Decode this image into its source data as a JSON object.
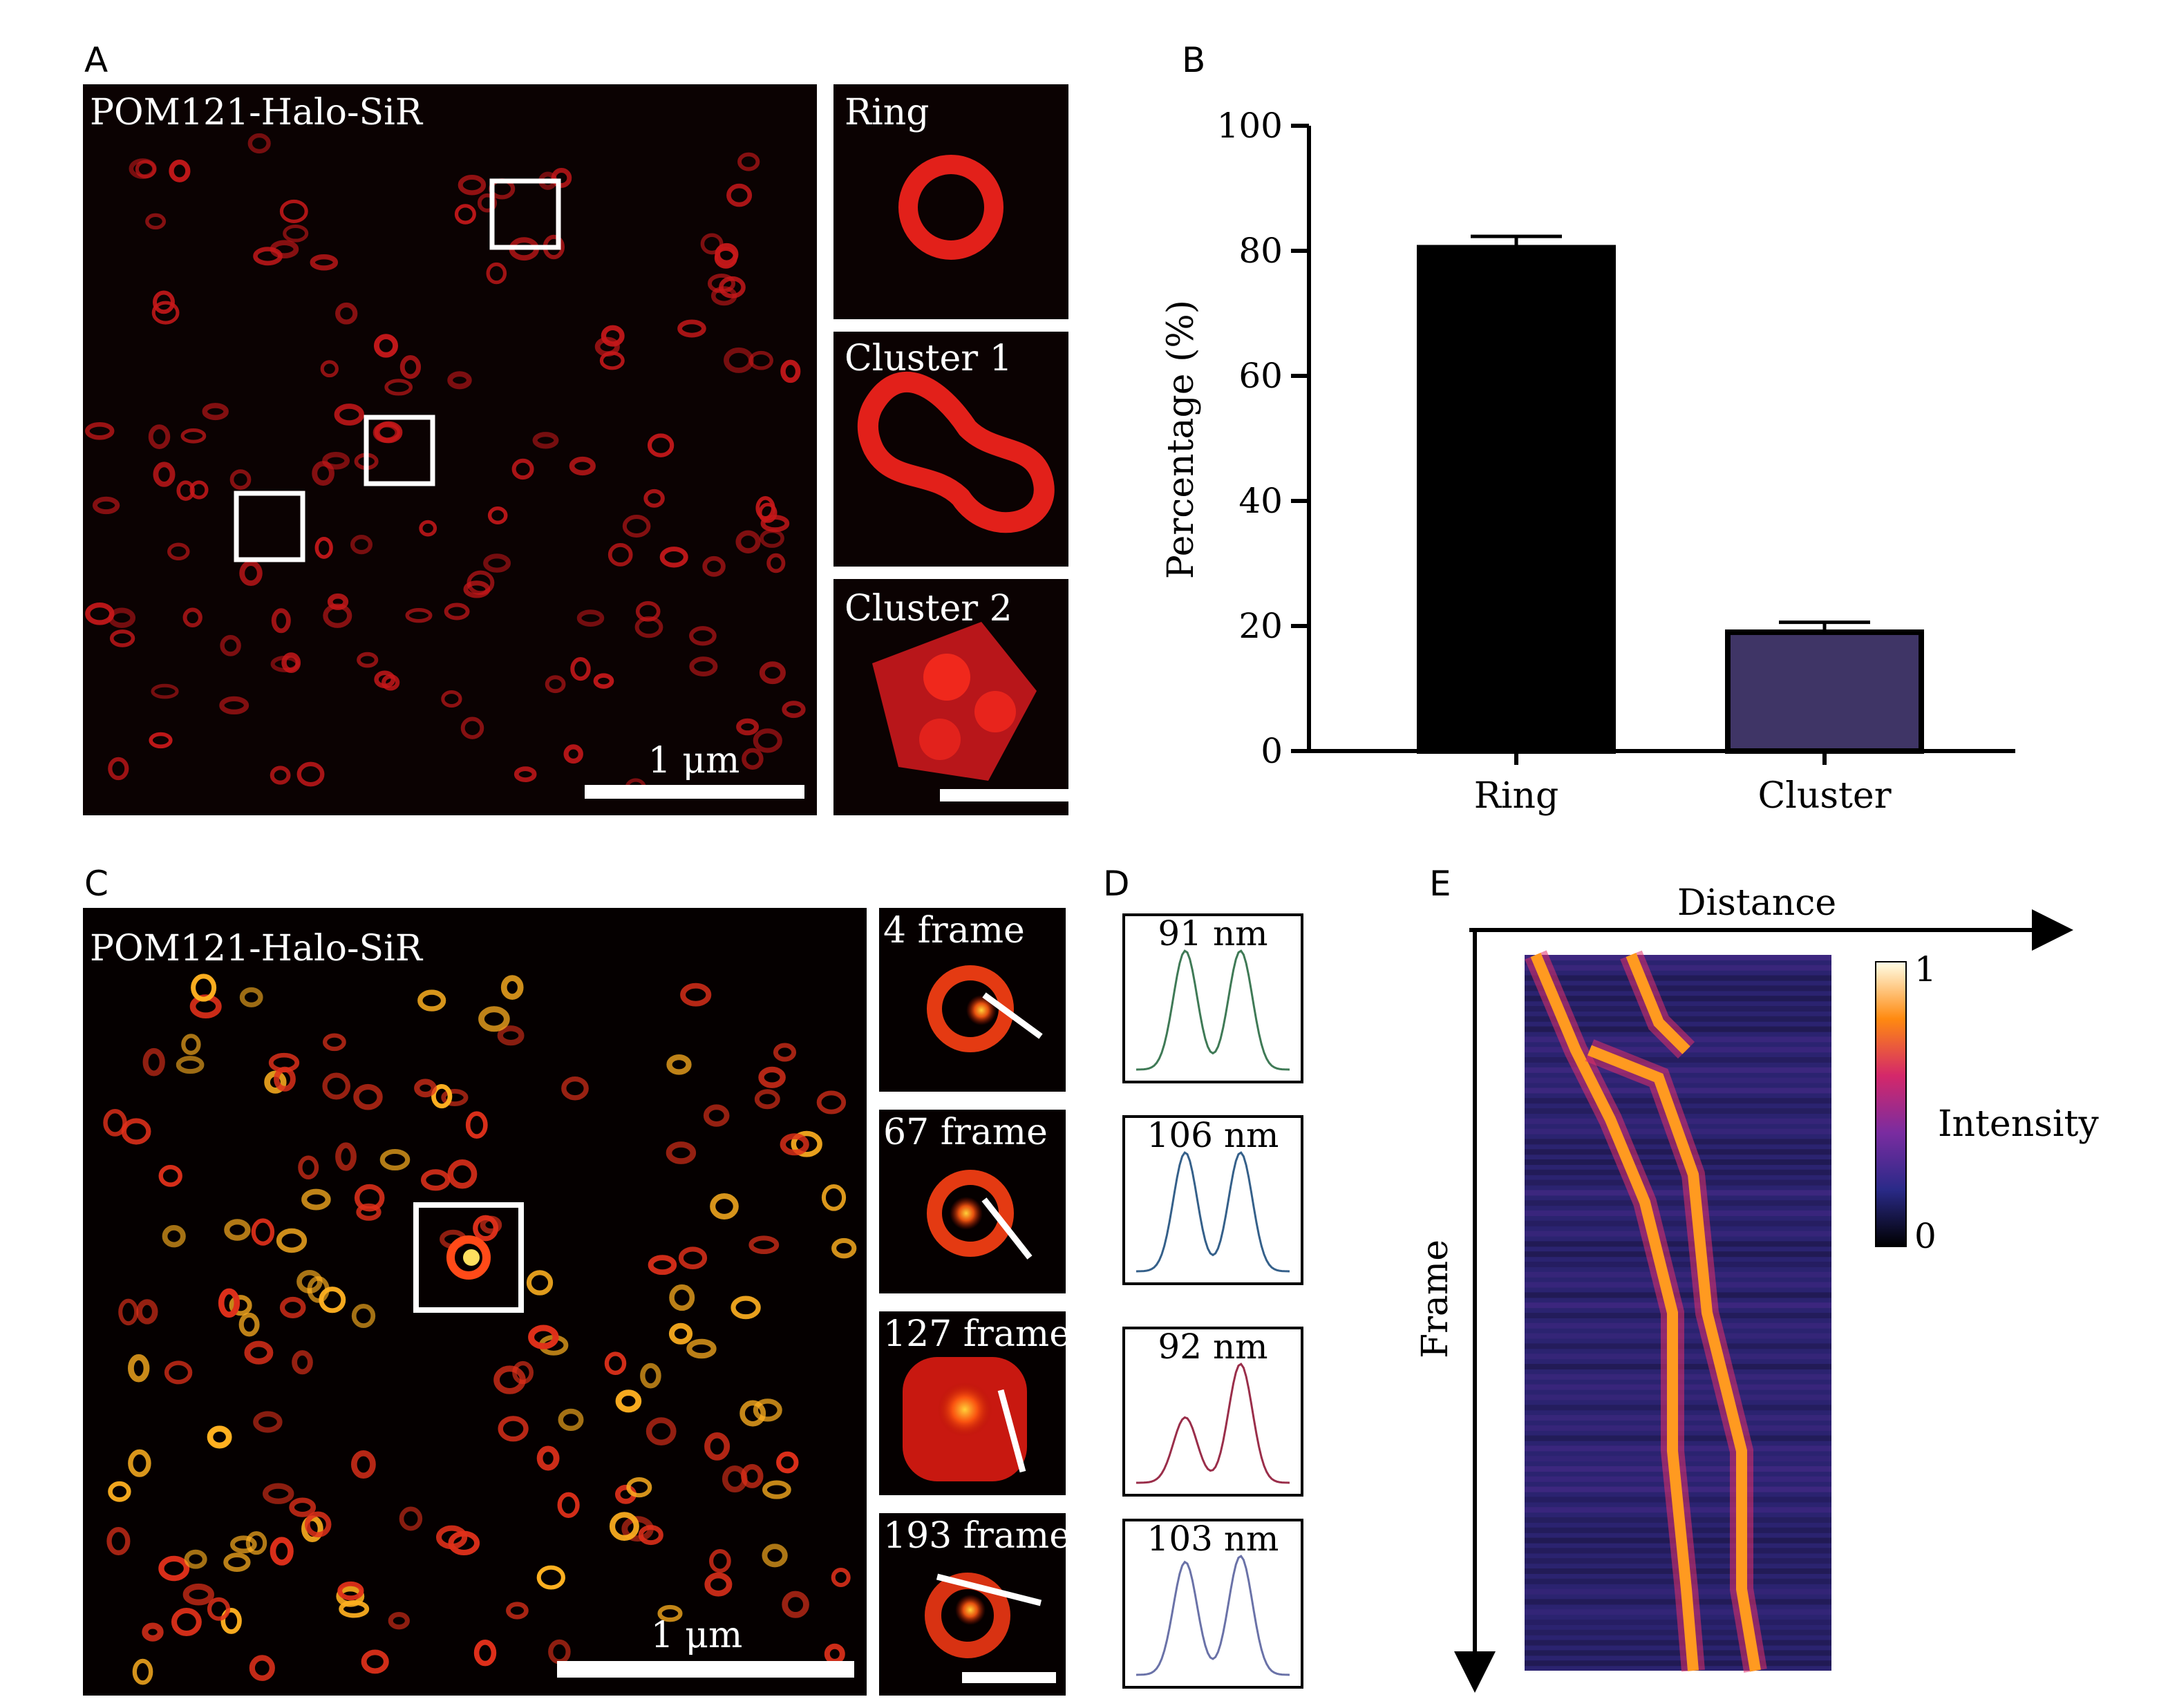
{
  "panels": {
    "A": {
      "label": "A",
      "image_label": "POM121-Halo-SiR",
      "scale_bar_label": "1 μm",
      "insets": [
        "Ring",
        "Cluster 1",
        "Cluster 2"
      ]
    },
    "B": {
      "label": "B"
    },
    "C": {
      "label": "C",
      "image_label": "POM121-Halo-SiR",
      "scale_bar_label": "1 μm",
      "insets": [
        "4 frame",
        "67 frame",
        "127 frame",
        "193 frame"
      ]
    },
    "D": {
      "label": "D",
      "profiles": [
        {
          "label": "91 nm",
          "color": "#3f7a56"
        },
        {
          "label": "106 nm",
          "color": "#35608a"
        },
        {
          "label": "92 nm",
          "color": "#9a2e4a"
        },
        {
          "label": "103 nm",
          "color": "#6a72a8"
        }
      ]
    },
    "E": {
      "label": "E",
      "x_axis": "Distance",
      "y_axis": "Frame",
      "colorbar_title": "Intensity",
      "colorbar_max": "1",
      "colorbar_min": "0"
    }
  },
  "chart_data": {
    "type": "bar",
    "categories": [
      "Ring",
      "Cluster"
    ],
    "values": [
      80.5,
      19
    ],
    "errors": [
      1.8,
      1.6
    ],
    "colors": [
      "#000000",
      "#3f3566"
    ],
    "ylabel": "Percentage (%)",
    "ylim": [
      0,
      100
    ],
    "yticks": [
      "0",
      "20",
      "40",
      "60",
      "80",
      "100"
    ]
  }
}
